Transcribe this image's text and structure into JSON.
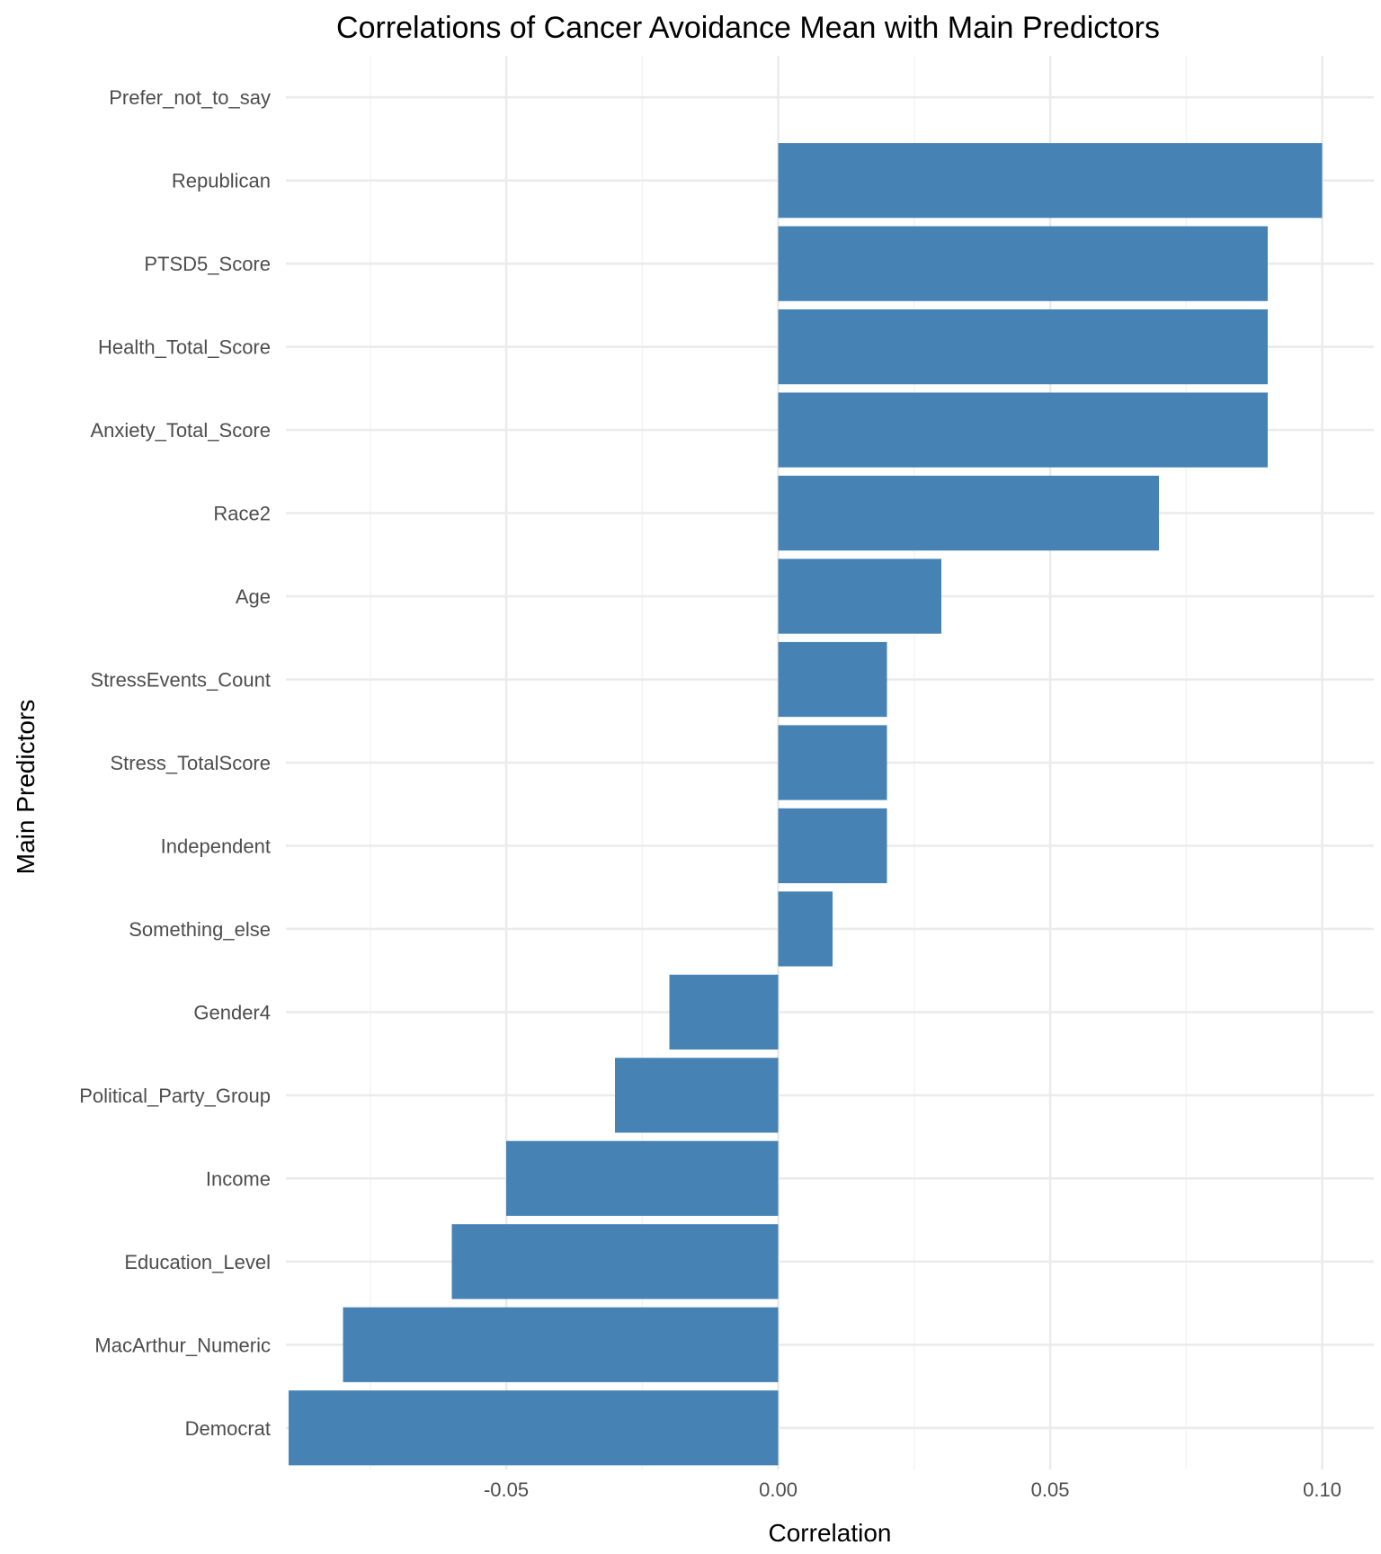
{
  "chart_data": {
    "type": "bar",
    "orientation": "horizontal",
    "title": "Correlations of Cancer Avoidance Mean with Main Predictors",
    "xlabel": "Correlation",
    "ylabel": "Main Predictors",
    "xlim": [
      -0.0905,
      0.1095
    ],
    "x_ticks": [
      -0.05,
      0.0,
      0.05,
      0.1
    ],
    "x_tick_labels": [
      "-0.05",
      "0.00",
      "0.05",
      "0.10"
    ],
    "grid": true,
    "bar_color": "#4682b4",
    "categories": [
      "Prefer_not_to_say",
      "Republican",
      "PTSD5_Score",
      "Health_Total_Score",
      "Anxiety_Total_Score",
      "Race2",
      "Age",
      "StressEvents_Count",
      "Stress_TotalScore",
      "Independent",
      "Something_else",
      "Gender4",
      "Political_Party_Group",
      "Income",
      "Education_Level",
      "MacArthur_Numeric",
      "Democrat"
    ],
    "values": [
      0.0,
      0.1,
      0.09,
      0.09,
      0.09,
      0.07,
      0.03,
      0.02,
      0.02,
      0.02,
      0.01,
      -0.02,
      -0.03,
      -0.05,
      -0.06,
      -0.08,
      -0.09
    ]
  }
}
